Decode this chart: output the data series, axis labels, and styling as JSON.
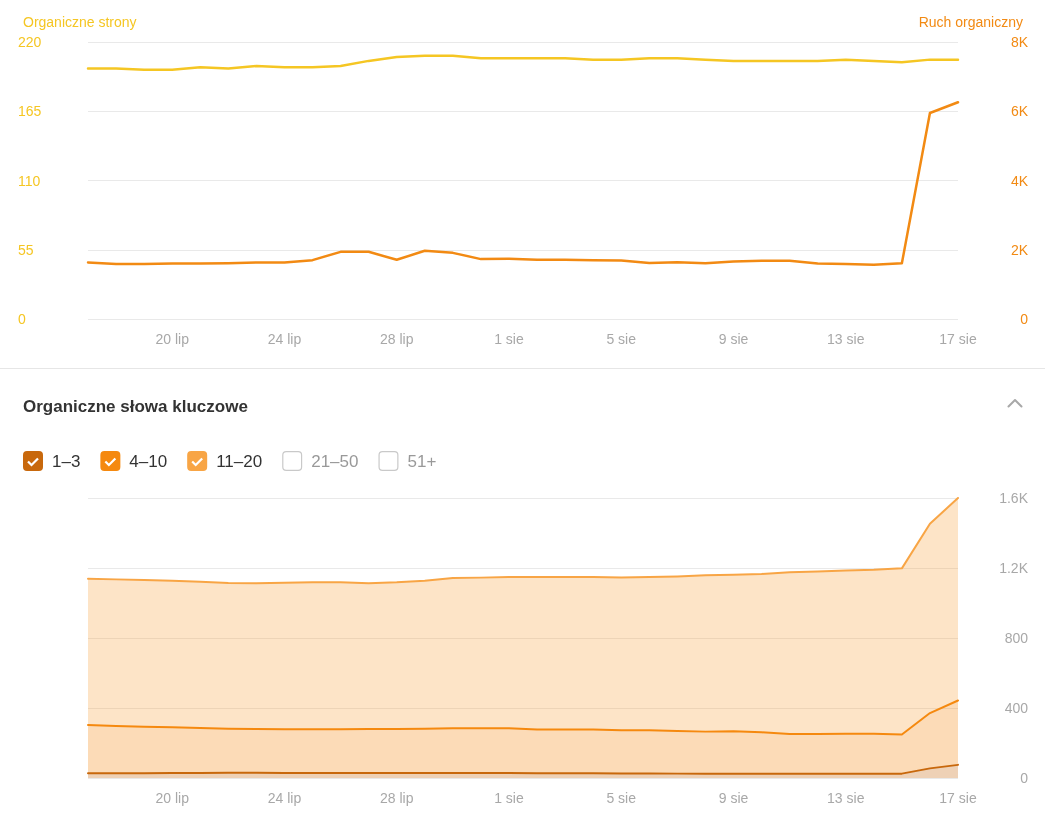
{
  "chart_data": [
    {
      "type": "line",
      "ylabel": "Organiczne strony",
      "y2label": "Ruch organiczny",
      "categories": [
        null,
        null,
        null,
        "20 lip",
        null,
        null,
        null,
        "24 lip",
        null,
        null,
        null,
        "28 lip",
        null,
        null,
        null,
        "1 sie",
        null,
        null,
        null,
        "5 sie",
        null,
        null,
        null,
        "9 sie",
        null,
        null,
        null,
        "13 sie",
        null,
        null,
        null,
        "17 sie"
      ],
      "series": [
        {
          "color": "#f5c623",
          "values": [
            199,
            199,
            198,
            198,
            200,
            199,
            201,
            200,
            200,
            201,
            205,
            208,
            209,
            209,
            207,
            207,
            207,
            207,
            206,
            206,
            207,
            207,
            206,
            205,
            205,
            205,
            205,
            206,
            205,
            204,
            206,
            206
          ]
        },
        {
          "color": "#f28a13",
          "axis": "y2",
          "values": [
            1630,
            1590,
            1590,
            1600,
            1600,
            1610,
            1630,
            1630,
            1700,
            1940,
            1940,
            1710,
            1970,
            1910,
            1730,
            1740,
            1710,
            1710,
            1700,
            1690,
            1620,
            1640,
            1610,
            1660,
            1680,
            1680,
            1600,
            1590,
            1570,
            1610,
            5950,
            6260
          ]
        }
      ],
      "ylim": [
        0,
        220
      ],
      "yticks": [
        0,
        55,
        110,
        165,
        220
      ],
      "y2lim": [
        0,
        8000
      ],
      "y2ticks": [
        0,
        {
          "value": 2000,
          "label": "2K"
        },
        {
          "value": 4000,
          "label": "4K"
        },
        {
          "value": 6000,
          "label": "6K"
        },
        {
          "value": 8000,
          "label": "8K"
        }
      ],
      "grid": "y",
      "marker": "none"
    },
    {
      "type": "area",
      "title": "Organiczne słowa kluczowe",
      "stacked": true,
      "categories": [
        null,
        null,
        null,
        "20 lip",
        null,
        null,
        null,
        "24 lip",
        null,
        null,
        null,
        "28 lip",
        null,
        null,
        null,
        "1 sie",
        null,
        null,
        null,
        "5 sie",
        null,
        null,
        null,
        "9 sie",
        null,
        null,
        null,
        "13 sie",
        null,
        null,
        null,
        "17 sie"
      ],
      "series": [
        {
          "name": "1–3",
          "color": "#c8680c",
          "values": [
            27,
            27,
            27,
            28,
            28,
            30,
            30,
            28,
            28,
            28,
            28,
            28,
            28,
            28,
            28,
            28,
            27,
            27,
            27,
            26,
            26,
            25,
            25,
            25,
            25,
            25,
            25,
            25,
            25,
            25,
            55,
            75
          ]
        },
        {
          "name": "4–10",
          "color": "#f5890f",
          "values": [
            276,
            270,
            266,
            262,
            258,
            252,
            250,
            250,
            250,
            250,
            252,
            252,
            254,
            256,
            256,
            256,
            250,
            250,
            250,
            247,
            247,
            244,
            240,
            242,
            236,
            226,
            226,
            228,
            228,
            224,
            316,
            368
          ]
        },
        {
          "name": "11–20",
          "color": "#f8a545",
          "values": [
            836,
            838,
            838,
            837,
            836,
            832,
            833,
            838,
            840,
            840,
            833,
            838,
            845,
            859,
            861,
            865,
            871,
            871,
            871,
            873,
            875,
            883,
            893,
            895,
            905,
            925,
            929,
            933,
            937,
            949,
            1082,
            1157
          ]
        },
        {
          "name": "21–50",
          "values": [
            null,
            null,
            null,
            null,
            null,
            null,
            null,
            null,
            null,
            null,
            null,
            null,
            null,
            null,
            null,
            null,
            null,
            null,
            null,
            null,
            null,
            null,
            null,
            null,
            null,
            null,
            null,
            null,
            null,
            null,
            null,
            null
          ]
        },
        {
          "name": "51+",
          "values": [
            null,
            null,
            null,
            null,
            null,
            null,
            null,
            null,
            null,
            null,
            null,
            null,
            null,
            null,
            null,
            null,
            null,
            null,
            null,
            null,
            null,
            null,
            null,
            null,
            null,
            null,
            null,
            null,
            null,
            null,
            null,
            null
          ]
        }
      ],
      "ylim": [
        0,
        1600
      ],
      "yticks": [
        0,
        400,
        800,
        {
          "value": 1200,
          "label": "1.2K"
        },
        {
          "value": 1600,
          "label": "1.6K"
        }
      ],
      "grid": "y",
      "legend": "top left",
      "marker": "none"
    }
  ]
}
